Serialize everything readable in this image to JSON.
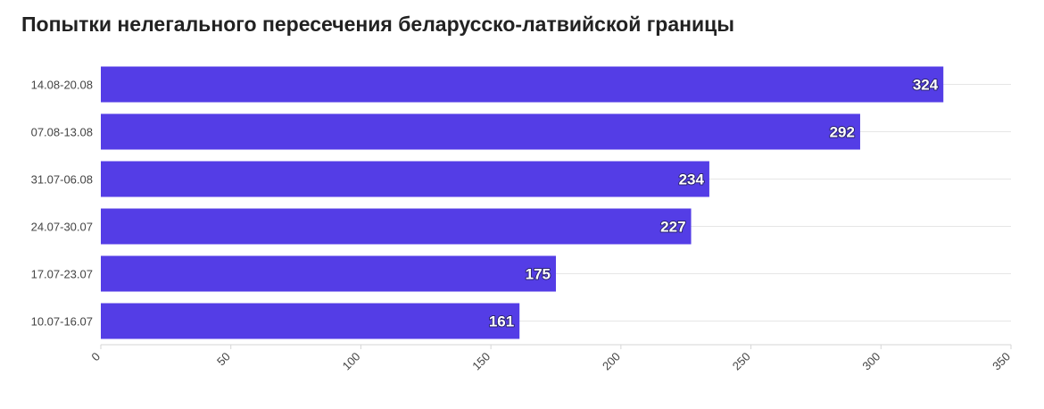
{
  "chart_data": {
    "type": "bar",
    "orientation": "horizontal",
    "title": "Попытки нелегального пересечения беларусско-латвийской границы",
    "categories": [
      "14.08-20.08",
      "07.08-13.08",
      "31.07-06.08",
      "24.07-30.07",
      "17.07-23.07",
      "10.07-16.07"
    ],
    "values": [
      324,
      292,
      234,
      227,
      175,
      161
    ],
    "xlim": [
      0,
      350
    ],
    "x_ticks": [
      0,
      50,
      100,
      150,
      200,
      250,
      300,
      350
    ],
    "bar_color": "#543de6",
    "grid": true,
    "legend": "none",
    "data_labels": true
  }
}
